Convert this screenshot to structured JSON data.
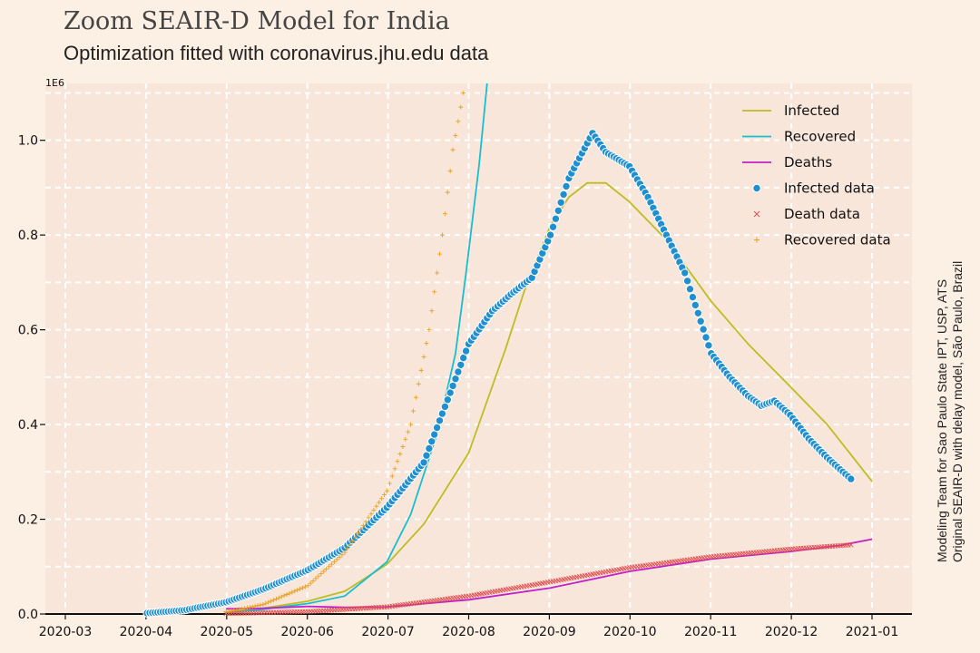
{
  "header": {
    "title": "Zoom SEAIR-D Model for India",
    "subtitle": "Optimization fitted with coronavirus.jhu.edu data"
  },
  "side_note": {
    "line1": "Modeling Team for Sao Paulo State IPT, USP, ATS",
    "line2": "Original SEAIR-D with delay model, São Paulo, Brazil"
  },
  "colors": {
    "background": "#fcefe4",
    "plot_bg": "#f9e6db",
    "infected_model": "#bcbd22",
    "recovered_model": "#17becf",
    "deaths_model": "#c020c8",
    "infected_data": "#1f8fd0",
    "death_data": "#e05050",
    "recovered_data": "#e8a020"
  },
  "chart_data": {
    "type": "line",
    "title": "Zoom SEAIR-D Model for India",
    "subtitle": "Optimization fitted with coronavirus.jhu.edu data",
    "y_multiplier_label": "1E6",
    "xlim": [
      "2020-03-01",
      "2021-01-01"
    ],
    "ylim": [
      0,
      1.12
    ],
    "x_ticks": [
      "2020-03",
      "2020-04",
      "2020-05",
      "2020-06",
      "2020-07",
      "2020-08",
      "2020-09",
      "2020-10",
      "2020-11",
      "2020-12",
      "2021-01"
    ],
    "y_ticks": [
      "0.0",
      "0.2",
      "0.4",
      "0.6",
      "0.8",
      "1.0"
    ],
    "grid": true,
    "legend_position": "top-right",
    "legend": [
      "Infected",
      "Recovered",
      "Deaths",
      "Infected data",
      "Death data",
      "Recovered data"
    ],
    "series": [
      {
        "name": "Infected",
        "style": "line",
        "color": "#bcbd22",
        "points": [
          [
            "2020-05-01",
            0.004
          ],
          [
            "2020-05-15",
            0.012
          ],
          [
            "2020-06-01",
            0.027
          ],
          [
            "2020-06-15",
            0.048
          ],
          [
            "2020-07-01",
            0.105
          ],
          [
            "2020-07-15",
            0.19
          ],
          [
            "2020-08-01",
            0.34
          ],
          [
            "2020-08-15",
            0.56
          ],
          [
            "2020-08-22",
            0.68
          ],
          [
            "2020-09-01",
            0.82
          ],
          [
            "2020-09-08",
            0.88
          ],
          [
            "2020-09-15",
            0.91
          ],
          [
            "2020-09-22",
            0.91
          ],
          [
            "2020-10-01",
            0.87
          ],
          [
            "2020-10-15",
            0.79
          ],
          [
            "2020-11-01",
            0.66
          ],
          [
            "2020-11-15",
            0.57
          ],
          [
            "2020-12-01",
            0.48
          ],
          [
            "2020-12-15",
            0.4
          ],
          [
            "2021-01-01",
            0.28
          ]
        ]
      },
      {
        "name": "Recovered",
        "style": "line",
        "color": "#17becf",
        "points": [
          [
            "2020-05-01",
            0.003
          ],
          [
            "2020-05-15",
            0.01
          ],
          [
            "2020-06-01",
            0.022
          ],
          [
            "2020-06-15",
            0.038
          ],
          [
            "2020-07-01",
            0.11
          ],
          [
            "2020-07-10",
            0.21
          ],
          [
            "2020-07-20",
            0.38
          ],
          [
            "2020-07-27",
            0.55
          ],
          [
            "2020-07-31",
            0.72
          ],
          [
            "2020-08-05",
            0.95
          ],
          [
            "2020-08-08",
            1.12
          ]
        ]
      },
      {
        "name": "Deaths",
        "style": "line",
        "color": "#c020c8",
        "points": [
          [
            "2020-05-01",
            0.011
          ],
          [
            "2020-05-15",
            0.012
          ],
          [
            "2020-06-01",
            0.016
          ],
          [
            "2020-06-15",
            0.014
          ],
          [
            "2020-07-01",
            0.015
          ],
          [
            "2020-08-01",
            0.03
          ],
          [
            "2020-09-01",
            0.055
          ],
          [
            "2020-10-01",
            0.09
          ],
          [
            "2020-11-01",
            0.116
          ],
          [
            "2020-12-01",
            0.132
          ],
          [
            "2020-12-20",
            0.145
          ],
          [
            "2021-01-01",
            0.158
          ]
        ]
      },
      {
        "name": "Infected data",
        "style": "dots",
        "color": "#1f8fd0",
        "points": [
          [
            "2020-04-01",
            0.002
          ],
          [
            "2020-04-15",
            0.008
          ],
          [
            "2020-05-01",
            0.025
          ],
          [
            "2020-05-15",
            0.052
          ],
          [
            "2020-06-01",
            0.093
          ],
          [
            "2020-06-15",
            0.14
          ],
          [
            "2020-07-01",
            0.225
          ],
          [
            "2020-07-15",
            0.32
          ],
          [
            "2020-08-01",
            0.57
          ],
          [
            "2020-08-10",
            0.64
          ],
          [
            "2020-08-17",
            0.675
          ],
          [
            "2020-08-25",
            0.71
          ],
          [
            "2020-09-01",
            0.8
          ],
          [
            "2020-09-08",
            0.92
          ],
          [
            "2020-09-17",
            1.015
          ],
          [
            "2020-09-22",
            0.975
          ],
          [
            "2020-10-01",
            0.945
          ],
          [
            "2020-10-08",
            0.88
          ],
          [
            "2020-10-15",
            0.8
          ],
          [
            "2020-10-22",
            0.72
          ],
          [
            "2020-11-01",
            0.55
          ],
          [
            "2020-11-08",
            0.5
          ],
          [
            "2020-11-15",
            0.46
          ],
          [
            "2020-11-20",
            0.44
          ],
          [
            "2020-11-25",
            0.45
          ],
          [
            "2020-12-01",
            0.42
          ],
          [
            "2020-12-08",
            0.37
          ],
          [
            "2020-12-15",
            0.33
          ],
          [
            "2020-12-24",
            0.285
          ]
        ]
      },
      {
        "name": "Death data",
        "style": "x",
        "color": "#e05050",
        "points": [
          [
            "2020-05-01",
            0.001
          ],
          [
            "2020-06-01",
            0.005
          ],
          [
            "2020-07-01",
            0.015
          ],
          [
            "2020-08-01",
            0.038
          ],
          [
            "2020-09-01",
            0.068
          ],
          [
            "2020-10-01",
            0.098
          ],
          [
            "2020-11-01",
            0.121
          ],
          [
            "2020-12-01",
            0.137
          ],
          [
            "2020-12-24",
            0.146
          ]
        ]
      },
      {
        "name": "Recovered data",
        "style": "plus",
        "color": "#e8a020",
        "points": [
          [
            "2020-05-01",
            0.004
          ],
          [
            "2020-05-15",
            0.02
          ],
          [
            "2020-06-01",
            0.06
          ],
          [
            "2020-06-15",
            0.13
          ],
          [
            "2020-07-01",
            0.26
          ],
          [
            "2020-07-10",
            0.4
          ],
          [
            "2020-07-17",
            0.6
          ],
          [
            "2020-07-22",
            0.8
          ],
          [
            "2020-07-26",
            0.98
          ],
          [
            "2020-07-30",
            1.1
          ]
        ]
      }
    ]
  }
}
